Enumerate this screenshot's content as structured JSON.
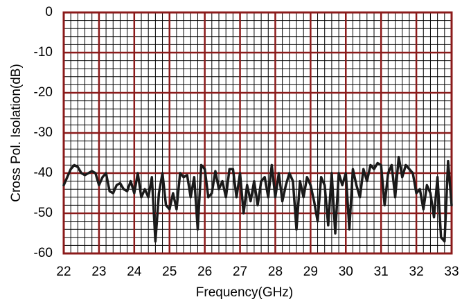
{
  "chart_data": {
    "type": "line",
    "xlabel": "Frequency(GHz)",
    "ylabel": "Cross Pol. Isolation(dB)",
    "xlim": [
      22,
      33
    ],
    "xticks": [
      22,
      23,
      24,
      25,
      26,
      27,
      28,
      29,
      30,
      31,
      32,
      33
    ],
    "ylim": [
      -60,
      0
    ],
    "yticks": [
      -60,
      -50,
      -40,
      -30,
      -20,
      -10,
      0
    ],
    "grid": true,
    "grid_color": "#8b1a1a",
    "minor_grid": 5,
    "series": [
      {
        "color": "#1a1a1a",
        "x": [
          22.0,
          22.1,
          22.2,
          22.3,
          22.4,
          22.5,
          22.6,
          22.7,
          22.8,
          22.9,
          23.0,
          23.1,
          23.2,
          23.3,
          23.4,
          23.5,
          23.6,
          23.7,
          23.8,
          23.9,
          24.0,
          24.1,
          24.2,
          24.3,
          24.4,
          24.5,
          24.6,
          24.7,
          24.8,
          24.9,
          25.0,
          25.1,
          25.2,
          25.3,
          25.4,
          25.5,
          25.6,
          25.7,
          25.8,
          25.9,
          26.0,
          26.1,
          26.2,
          26.3,
          26.4,
          26.5,
          26.6,
          26.7,
          26.8,
          26.9,
          27.0,
          27.1,
          27.2,
          27.3,
          27.4,
          27.5,
          27.6,
          27.7,
          27.8,
          27.9,
          28.0,
          28.1,
          28.2,
          28.3,
          28.4,
          28.5,
          28.6,
          28.7,
          28.8,
          28.9,
          29.0,
          29.1,
          29.2,
          29.3,
          29.4,
          29.5,
          29.6,
          29.7,
          29.8,
          29.9,
          30.0,
          30.1,
          30.2,
          30.3,
          30.4,
          30.5,
          30.6,
          30.7,
          30.8,
          30.9,
          31.0,
          31.1,
          31.2,
          31.3,
          31.4,
          31.5,
          31.6,
          31.7,
          31.8,
          31.9,
          32.0,
          32.1,
          32.2,
          32.3,
          32.4,
          32.5,
          32.6,
          32.7,
          32.8,
          32.9,
          33.0
        ],
        "values": [
          -43,
          -41,
          -39,
          -38,
          -38.5,
          -40,
          -40.5,
          -40,
          -39.5,
          -40,
          -43,
          -41,
          -40,
          -44.5,
          -45,
          -43,
          -42.5,
          -44,
          -44.5,
          -42,
          -45,
          -40,
          -46,
          -44,
          -46,
          -41,
          -57,
          -45,
          -40,
          -48,
          -49,
          -45,
          -49,
          -40,
          -41,
          -40.5,
          -46,
          -41,
          -54,
          -38,
          -39,
          -46,
          -45,
          -39.5,
          -44,
          -42,
          -46,
          -39,
          -39,
          -46,
          -40,
          -50,
          -43,
          -47,
          -42,
          -48,
          -42,
          -41,
          -46,
          -38,
          -46,
          -40,
          -47,
          -43,
          -40,
          -42,
          -54,
          -42,
          -46,
          -41,
          -43,
          -47,
          -52,
          -41,
          -43,
          -53,
          -40,
          -55,
          -40,
          -43,
          -40,
          -54,
          -39,
          -43,
          -46,
          -39,
          -42,
          -38,
          -39,
          -37.5,
          -38,
          -48,
          -40,
          -38,
          -46,
          -36,
          -41,
          -38,
          -39,
          -40,
          -45,
          -44,
          -49,
          -43,
          -45,
          -51,
          -41,
          -56,
          -57,
          -37,
          -48
        ]
      }
    ]
  }
}
